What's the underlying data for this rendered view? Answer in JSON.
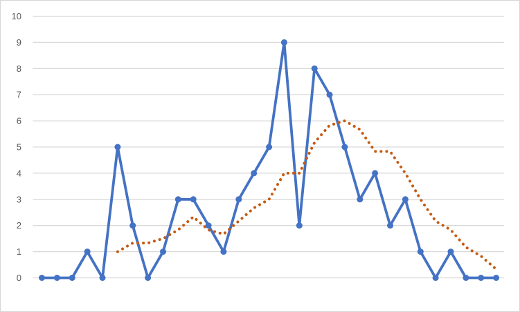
{
  "chart": {
    "background_color": "#FFFFFF",
    "border_color": "#D5D5D5",
    "gridline_color": "#D9D9D9",
    "tick_label_color": "#595959"
  },
  "chart_data": {
    "type": "line",
    "title": "",
    "xlabel": "",
    "ylabel": "",
    "x_labels_visible": false,
    "x_count": 31,
    "ylim": [
      0,
      10
    ],
    "y_ticks": [
      0,
      1,
      2,
      3,
      4,
      5,
      6,
      7,
      8,
      9,
      10
    ],
    "grid": "horizontal",
    "legend": "none",
    "series": [
      {
        "name": "blue-data-line",
        "color": "#4472C4",
        "style": "solid",
        "marker": "circle",
        "start_index": 0,
        "values": [
          0,
          0,
          0,
          1,
          0,
          5,
          2,
          0,
          1,
          3,
          3,
          2,
          1,
          3,
          4,
          5,
          9,
          2,
          8,
          7,
          5,
          3,
          4,
          2,
          3,
          1,
          0,
          1,
          0,
          0,
          0
        ]
      },
      {
        "name": "orange-dotted-moving-average",
        "color": "#C55A11",
        "style": "dotted",
        "marker": "none",
        "start_index": 5,
        "values": [
          1.0,
          1.33,
          1.33,
          1.5,
          1.83,
          2.33,
          1.83,
          1.67,
          2.17,
          2.67,
          3.0,
          4.0,
          4.0,
          5.17,
          5.83,
          6.0,
          5.67,
          4.83,
          4.83,
          4.0,
          3.0,
          2.17,
          1.83,
          1.17,
          0.83,
          0.33
        ]
      }
    ]
  }
}
